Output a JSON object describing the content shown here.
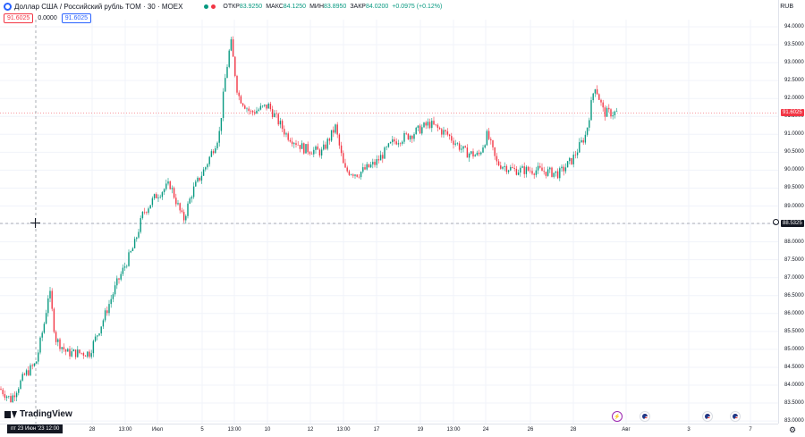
{
  "header": {
    "symbol_title": "Доллар США / Российский рубль TOM · 30 · MOEX",
    "ohlc": {
      "open_label": "ОТКР",
      "open_value": "83.9250",
      "high_label": "МАКС",
      "high_value": "84.1250",
      "low_label": "МИН",
      "low_value": "83.8950",
      "close_label": "ЗАКР",
      "close_value": "84.0200",
      "change": "+0.0975 (+0.12%)"
    },
    "currency": "RUB",
    "colors": {
      "up": "#089981",
      "down": "#f23645",
      "accent": "#2962ff"
    }
  },
  "trade": {
    "sell": "91.6025",
    "spread": "0.0000",
    "buy": "91.6025"
  },
  "price_axis": {
    "ticks": [
      "94.0000",
      "93.5000",
      "93.0000",
      "92.5000",
      "92.0000",
      "91.5000",
      "91.0000",
      "90.5000",
      "90.0000",
      "89.5000",
      "89.0000",
      "88.5000",
      "88.0000",
      "87.5000",
      "87.0000",
      "86.5000",
      "86.0000",
      "85.5000",
      "85.0000",
      "84.5000",
      "84.0000",
      "83.5000",
      "83.0000"
    ],
    "last_price": "91.6025",
    "crosshair_price": "88.5325"
  },
  "time_axis": {
    "ticks": [
      "28",
      "13:00",
      "Июл",
      "5",
      "13:00",
      "10",
      "12",
      "13:00",
      "17",
      "19",
      "13:00",
      "24",
      "26",
      "28",
      "Авг",
      "3",
      "7"
    ],
    "crosshair_time": "пт 23 Июн '23   12:00"
  },
  "chart_data": {
    "type": "candlestick",
    "symbol": "USDRUB_TOM",
    "interval": "30",
    "ylim": [
      83.0,
      94.0
    ],
    "grid": true,
    "keypoints": [
      [
        0,
        83.9
      ],
      [
        12,
        83.6
      ],
      [
        28,
        84.3
      ],
      [
        40,
        84.6
      ],
      [
        50,
        85.8
      ],
      [
        55,
        86.7
      ],
      [
        62,
        85.3
      ],
      [
        75,
        84.9
      ],
      [
        100,
        84.9
      ],
      [
        115,
        85.8
      ],
      [
        130,
        86.8
      ],
      [
        150,
        87.9
      ],
      [
        160,
        88.8
      ],
      [
        175,
        89.3
      ],
      [
        190,
        89.6
      ],
      [
        205,
        88.6
      ],
      [
        215,
        89.4
      ],
      [
        230,
        90.1
      ],
      [
        245,
        91.0
      ],
      [
        252,
        92.6
      ],
      [
        258,
        93.6
      ],
      [
        266,
        92.1
      ],
      [
        280,
        91.6
      ],
      [
        300,
        91.8
      ],
      [
        320,
        91.0
      ],
      [
        340,
        90.6
      ],
      [
        360,
        90.5
      ],
      [
        375,
        91.2
      ],
      [
        385,
        90.0
      ],
      [
        400,
        89.9
      ],
      [
        420,
        90.2
      ],
      [
        440,
        90.8
      ],
      [
        460,
        91.0
      ],
      [
        480,
        91.3
      ],
      [
        500,
        91.0
      ],
      [
        520,
        90.5
      ],
      [
        535,
        90.4
      ],
      [
        545,
        91.0
      ],
      [
        555,
        90.2
      ],
      [
        575,
        90.0
      ],
      [
        600,
        90.0
      ],
      [
        625,
        89.9
      ],
      [
        640,
        90.3
      ],
      [
        655,
        91.0
      ],
      [
        665,
        92.4
      ],
      [
        675,
        91.6
      ],
      [
        690,
        91.6
      ]
    ]
  },
  "events": [
    "lightning-event",
    "us-event",
    "us-event",
    "us-event"
  ],
  "branding": {
    "logo_text": "TradingView"
  }
}
